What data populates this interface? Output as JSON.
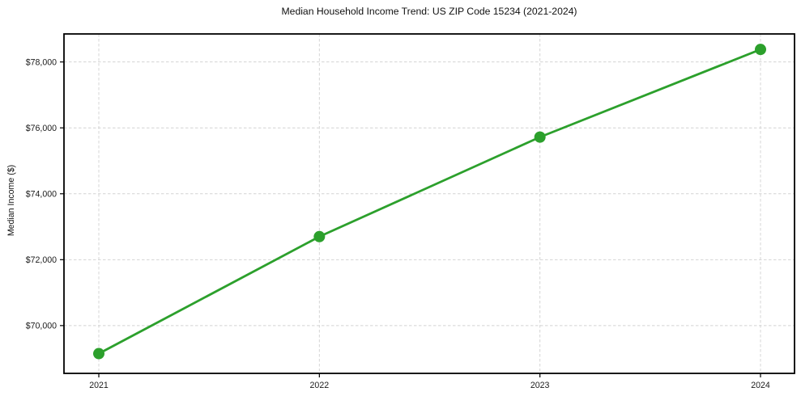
{
  "chart_data": {
    "type": "line",
    "title": "Median Household Income Trend: US ZIP Code 15234 (2021-2024)",
    "xlabel": "",
    "ylabel": "Median Income ($)",
    "categories": [
      "2021",
      "2022",
      "2023",
      "2024"
    ],
    "values": [
      69150,
      72700,
      75720,
      78380
    ],
    "y_tick_values": [
      70000,
      72000,
      74000,
      76000,
      78000
    ],
    "y_tick_labels": [
      "$70,000",
      "$72,000",
      "$74,000",
      "$76,000",
      "$78,000"
    ],
    "ylim": [
      68550,
      78850
    ],
    "grid": true,
    "legend_position": "none",
    "line_color": "#2ca02c",
    "marker_color": "#2ca02c",
    "grid_color": "#d4d4d4",
    "axis_color": "#000000",
    "text_color": "#1a1a1a"
  }
}
